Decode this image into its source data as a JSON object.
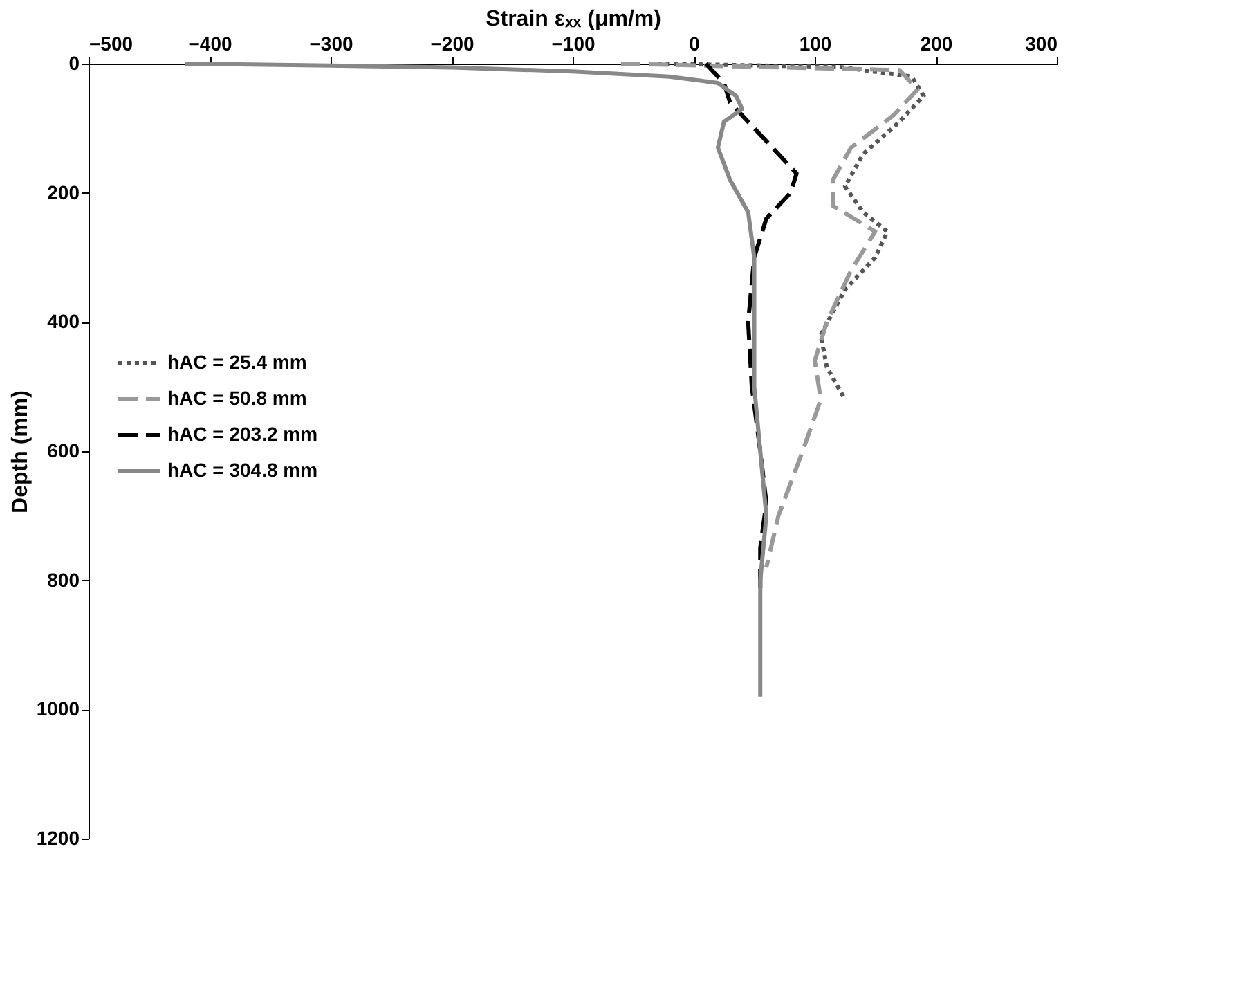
{
  "chart_data": {
    "type": "line",
    "xlabel": "Strain εₓₓ (μm/m)",
    "ylabel": "Depth (mm)",
    "xlim": [
      -500,
      300
    ],
    "xticks": [
      -500,
      -400,
      -300,
      -200,
      -100,
      0,
      100,
      200,
      300
    ],
    "ylim": [
      1200,
      0
    ],
    "yticks": [
      0,
      200,
      400,
      600,
      800,
      1000,
      1200
    ],
    "grid": false,
    "legend": "left",
    "marker": "none",
    "series": [
      {
        "name": "hAC = 25.4 mm",
        "color": "#555555",
        "line_style": "dotted",
        "x": [
          -30,
          120,
          180,
          190,
          170,
          140,
          125,
          140,
          160,
          150,
          125,
          105,
          110,
          125
        ],
        "values": [
          0,
          5,
          20,
          50,
          90,
          140,
          190,
          230,
          260,
          300,
          350,
          420,
          470,
          520
        ]
      },
      {
        "name": "hAC = 50.8 mm",
        "color": "#999999",
        "line_style": "dashed",
        "x": [
          -60,
          170,
          185,
          165,
          130,
          115,
          115,
          150,
          130,
          110,
          100,
          105,
          90,
          70,
          60
        ],
        "values": [
          0,
          10,
          40,
          80,
          130,
          180,
          220,
          260,
          320,
          400,
          460,
          520,
          600,
          700,
          780
        ]
      },
      {
        "name": "hAC = 203.2 mm",
        "color": "#000000",
        "line_style": "dashed",
        "x": [
          10,
          25,
          30,
          50,
          70,
          85,
          80,
          60,
          50,
          45,
          48,
          55,
          60,
          55,
          55
        ],
        "values": [
          0,
          30,
          60,
          100,
          140,
          170,
          200,
          240,
          300,
          400,
          500,
          600,
          680,
          750,
          820
        ]
      },
      {
        "name": "hAC = 304.8 mm",
        "color": "#888888",
        "line_style": "solid",
        "x": [
          -420,
          -300,
          -200,
          -100,
          -20,
          20,
          35,
          40,
          25,
          20,
          30,
          45,
          50,
          50,
          50,
          55,
          60,
          55,
          55,
          55
        ],
        "values": [
          0,
          3,
          6,
          12,
          20,
          30,
          50,
          70,
          90,
          130,
          180,
          230,
          300,
          400,
          500,
          600,
          700,
          800,
          900,
          980
        ]
      }
    ]
  }
}
